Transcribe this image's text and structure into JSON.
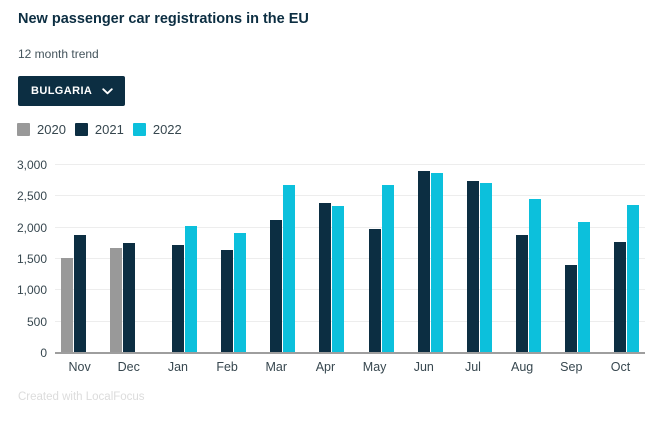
{
  "filter": {
    "selected_label": "BULGARIA"
  },
  "footer": {
    "credit": "Created with LocalFocus"
  },
  "colors": {
    "navy": "#0c2e42",
    "cyan": "#0cc0dc",
    "gray": "#999999",
    "gridline": "#ededed",
    "axis_line": "#9e9e9e",
    "axis_text": "#37474f",
    "credit_text": "#dcdcdc",
    "background": "#ffffff"
  },
  "chart_data": {
    "type": "bar",
    "title": "New passenger car registrations in the EU",
    "subtitle": "12 month trend",
    "categories": [
      "Nov",
      "Dec",
      "Jan",
      "Feb",
      "Mar",
      "Apr",
      "May",
      "Jun",
      "Jul",
      "Aug",
      "Sep",
      "Oct"
    ],
    "series": [
      {
        "name": "2020",
        "color": "#999999",
        "values": [
          1520,
          1670,
          null,
          null,
          null,
          null,
          null,
          null,
          null,
          null,
          null,
          null
        ]
      },
      {
        "name": "2021",
        "color": "#0c2e42",
        "values": [
          1880,
          1750,
          1730,
          1650,
          2130,
          2400,
          1980,
          2910,
          2740,
          1880,
          1410,
          1770
        ]
      },
      {
        "name": "2022",
        "color": "#0cc0dc",
        "values": [
          null,
          null,
          2020,
          1920,
          2680,
          2340,
          2680,
          2880,
          2710,
          2460,
          2090,
          2360
        ]
      }
    ],
    "xlabel": "",
    "ylabel": "",
    "ylim": [
      0,
      3000
    ],
    "ytick_interval": 500,
    "ytick_labels": [
      "0",
      "500",
      "1,000",
      "1,500",
      "2,000",
      "2,500",
      "3,000"
    ],
    "grid": true,
    "legend_position": "top-left"
  }
}
